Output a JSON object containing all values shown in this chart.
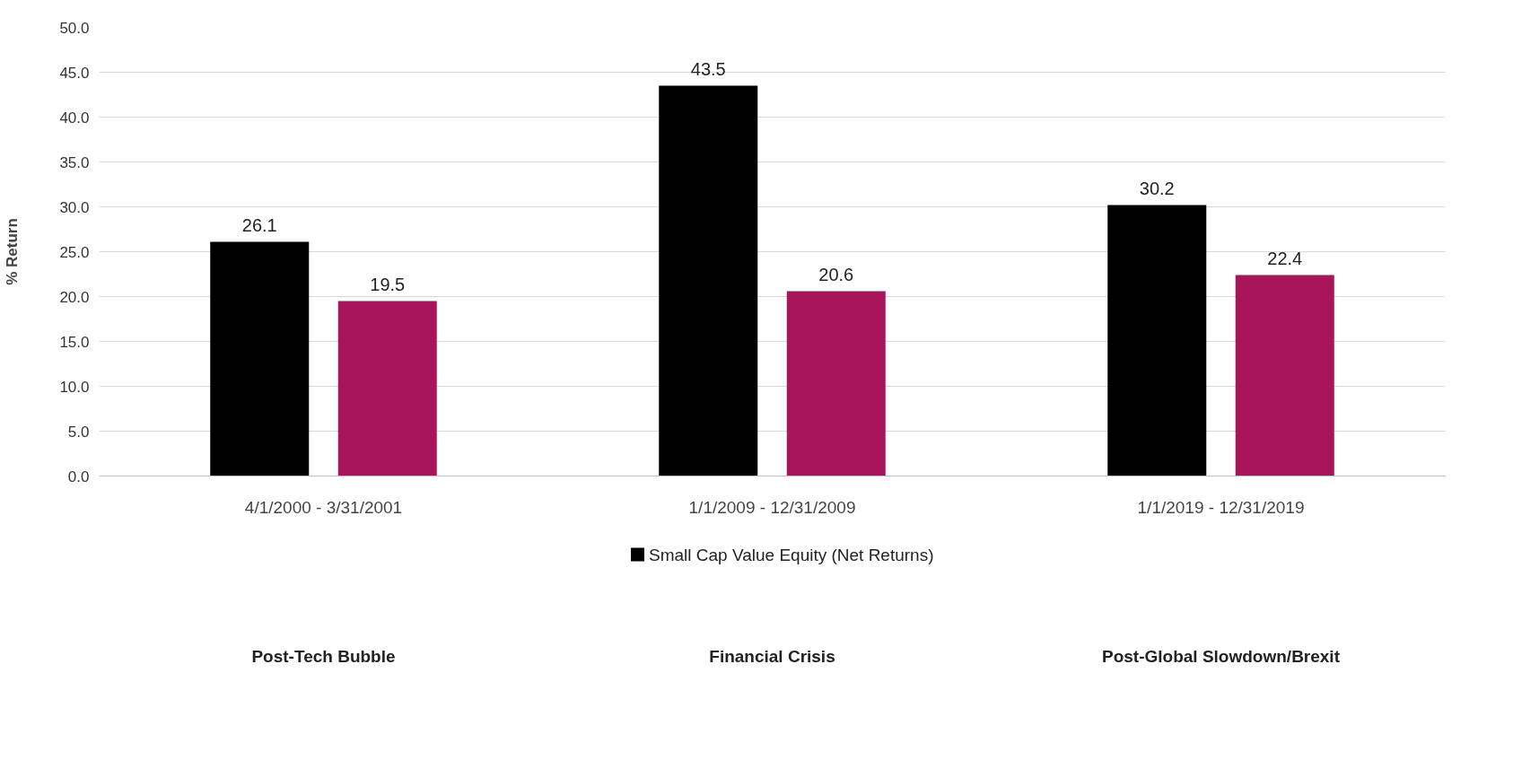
{
  "chart_data": {
    "type": "bar",
    "ylabel": "% Return",
    "categories": [
      "4/1/2000 - 3/31/2001",
      "1/1/2009 - 12/31/2009",
      "1/1/2019 - 12/31/2019"
    ],
    "series": [
      {
        "name": "Small Cap Value Equity (Net Returns)",
        "color": "#000000",
        "values": [
          26.1,
          43.5,
          30.2
        ]
      },
      {
        "color": "#a8155a",
        "values": [
          19.5,
          20.6,
          22.4
        ]
      }
    ],
    "ylim": [
      0,
      50
    ],
    "yticks": [
      {
        "value": 0,
        "label": "0.0"
      },
      {
        "value": 5,
        "label": "5.0"
      },
      {
        "value": 10,
        "label": "10.0"
      },
      {
        "value": 15,
        "label": "15.0"
      },
      {
        "value": 20,
        "label": "20.0"
      },
      {
        "value": 25,
        "label": "25.0"
      },
      {
        "value": 30,
        "label": "30.0"
      },
      {
        "value": 35,
        "label": "35.0"
      },
      {
        "value": 40,
        "label": "40.0"
      },
      {
        "value": 45,
        "label": "45.0"
      },
      {
        "value": 50,
        "label": "50.0"
      }
    ],
    "data_labels": true,
    "grid": "y",
    "legend": "bottom",
    "annotations": [
      "Post-Tech Bubble",
      "Financial Crisis",
      "Post-Global Slowdown/Brexit"
    ]
  }
}
